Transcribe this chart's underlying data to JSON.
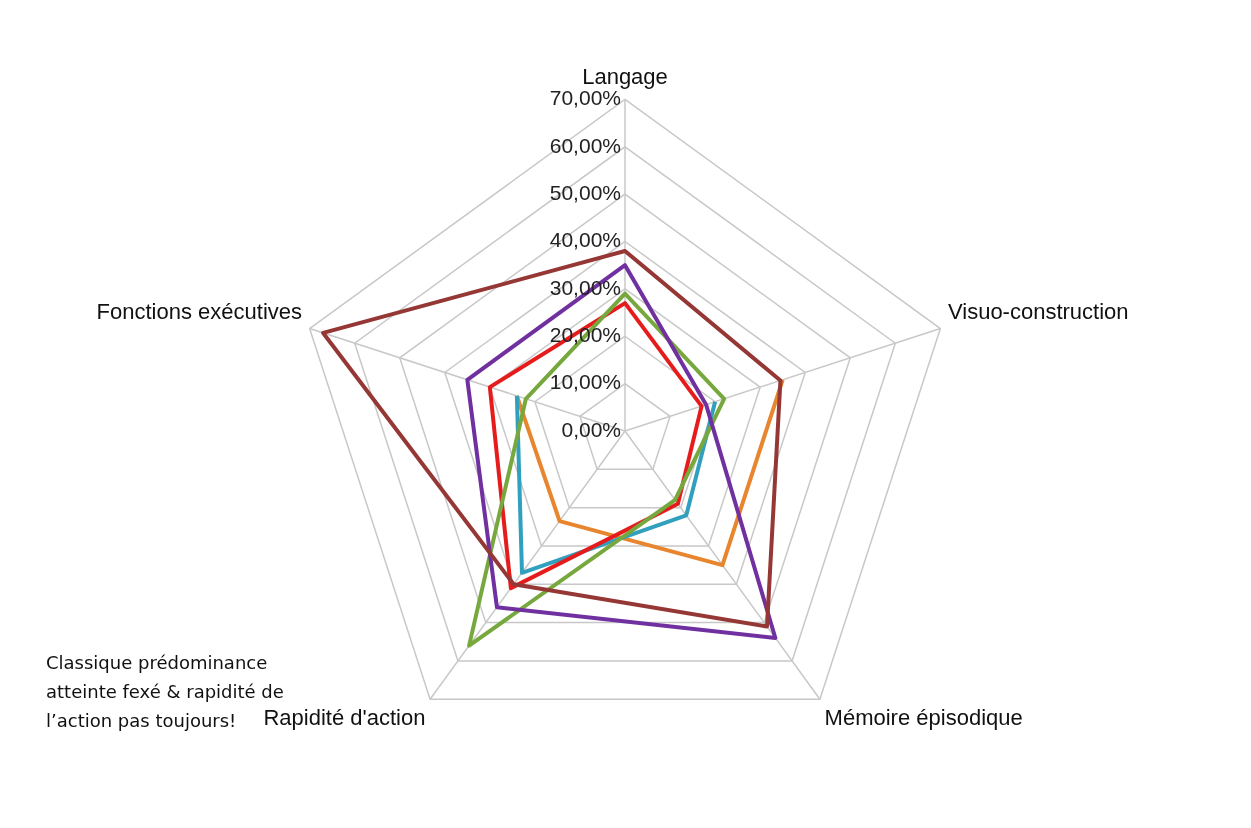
{
  "chart_data": {
    "type": "radar",
    "categories": [
      "Langage",
      "Visuo-construction",
      "Mémoire épisodique",
      "Rapidité d'action",
      "Fonctions exécutives"
    ],
    "series": [
      {
        "color": "#953735",
        "values": [
          38,
          34.5,
          51,
          40,
          67
        ]
      },
      {
        "color": "#7030a0",
        "values": [
          35,
          18,
          54,
          46,
          35
        ]
      },
      {
        "color": "#77a83e",
        "values": [
          29,
          22,
          18,
          56,
          22
        ]
      },
      {
        "color": "#e61c1c",
        "values": [
          27,
          17,
          19,
          41,
          30
        ]
      },
      {
        "color": "#31a0bf",
        "values": [
          null,
          20,
          22,
          37,
          24
        ]
      },
      {
        "color": "#e8862f",
        "values": [
          null,
          35,
          35,
          23.5,
          24
        ]
      }
    ],
    "ylim": [
      0,
      70
    ],
    "yticks": [
      {
        "value": 0,
        "label": "0,00%"
      },
      {
        "value": 10,
        "label": "10,00%"
      },
      {
        "value": 20,
        "label": "20,00%"
      },
      {
        "value": 30,
        "label": "30,00%"
      },
      {
        "value": 40,
        "label": "40,00%"
      },
      {
        "value": 50,
        "label": "50,00%"
      },
      {
        "value": 60,
        "label": "60,00%"
      },
      {
        "value": 70,
        "label": "70,00%"
      }
    ],
    "grid": true,
    "legend": false,
    "marker": "none",
    "line_style": "solid",
    "annotations": [
      "Classique prédominance atteinte fexé & rapidité de l’action pas toujours!"
    ]
  }
}
